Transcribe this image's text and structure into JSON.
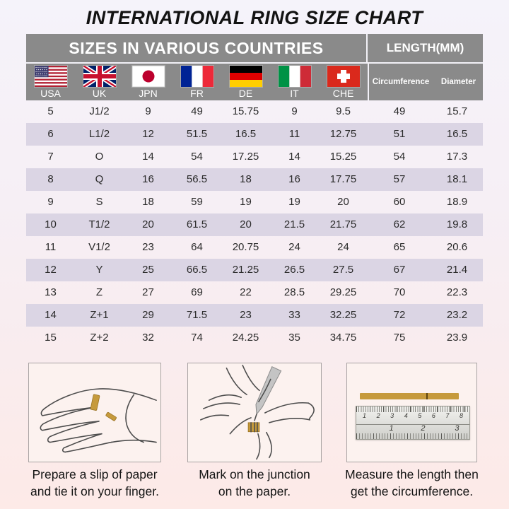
{
  "title": "INTERNATIONAL RING SIZE CHART",
  "table": {
    "header_left": "SIZES IN VARIOUS COUNTRIES",
    "header_right": "LENGTH(MM)",
    "columns": [
      {
        "code": "USA",
        "flag": "usa"
      },
      {
        "code": "UK",
        "flag": "uk"
      },
      {
        "code": "JPN",
        "flag": "jpn"
      },
      {
        "code": "FR",
        "flag": "fr"
      },
      {
        "code": "DE",
        "flag": "de"
      },
      {
        "code": "IT",
        "flag": "it"
      },
      {
        "code": "CHE",
        "flag": "che"
      }
    ],
    "length_columns": [
      "Circumference",
      "Diameter"
    ],
    "rows": [
      [
        "5",
        "J1/2",
        "9",
        "49",
        "15.75",
        "9",
        "9.5",
        "49",
        "15.7"
      ],
      [
        "6",
        "L1/2",
        "12",
        "51.5",
        "16.5",
        "11",
        "12.75",
        "51",
        "16.5"
      ],
      [
        "7",
        "O",
        "14",
        "54",
        "17.25",
        "14",
        "15.25",
        "54",
        "17.3"
      ],
      [
        "8",
        "Q",
        "16",
        "56.5",
        "18",
        "16",
        "17.75",
        "57",
        "18.1"
      ],
      [
        "9",
        "S",
        "18",
        "59",
        "19",
        "19",
        "20",
        "60",
        "18.9"
      ],
      [
        "10",
        "T1/2",
        "20",
        "61.5",
        "20",
        "21.5",
        "21.75",
        "62",
        "19.8"
      ],
      [
        "11",
        "V1/2",
        "23",
        "64",
        "20.75",
        "24",
        "24",
        "65",
        "20.6"
      ],
      [
        "12",
        "Y",
        "25",
        "66.5",
        "21.25",
        "26.5",
        "27.5",
        "67",
        "21.4"
      ],
      [
        "13",
        "Z",
        "27",
        "69",
        "22",
        "28.5",
        "29.25",
        "70",
        "22.3"
      ],
      [
        "14",
        "Z+1",
        "29",
        "71.5",
        "23",
        "33",
        "32.25",
        "72",
        "23.2"
      ],
      [
        "15",
        "Z+2",
        "32",
        "74",
        "24.25",
        "35",
        "34.75",
        "75",
        "23.9"
      ]
    ]
  },
  "guides": [
    {
      "illustration": "hand-with-paper-strip",
      "caption_line1": "Prepare a slip of paper",
      "caption_line2": "and tie it on your finger."
    },
    {
      "illustration": "marking-pen-on-finger",
      "caption_line1": "Mark on the junction",
      "caption_line2": "on the paper."
    },
    {
      "illustration": "ruler-measuring-strip",
      "caption_line1": "Measure the length then",
      "caption_line2": "get the circumference."
    }
  ],
  "ruler": {
    "cm_numbers": [
      "1",
      "2",
      "3",
      "4",
      "5",
      "6",
      "7",
      "8"
    ],
    "inch_numbers": [
      "1",
      "2",
      "3"
    ],
    "inch_positions": [
      31,
      59,
      89
    ]
  },
  "colors": {
    "header_gray": "#8a8a8a",
    "row_stripe": "#dbd5e4",
    "paper_gold": "#c69a3c",
    "background_top": "#f5f3fa",
    "background_bottom": "#fdeae7"
  }
}
